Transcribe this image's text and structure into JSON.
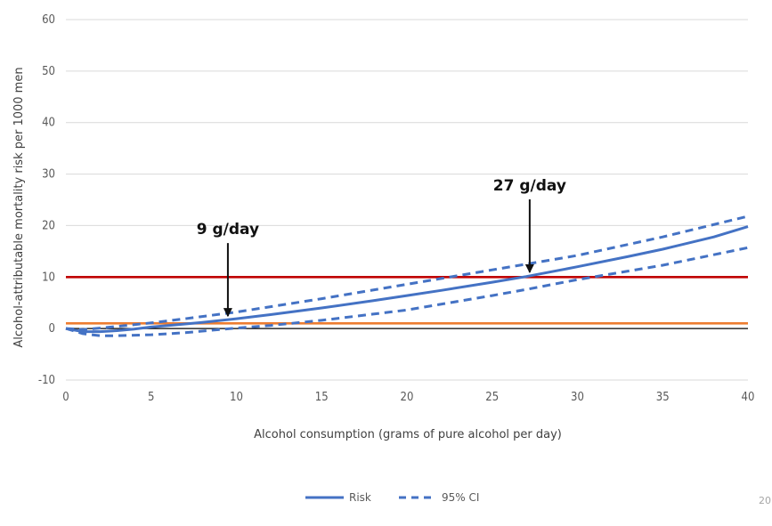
{
  "chart_data": {
    "type": "line",
    "xlabel": "Alcohol consumption (grams of pure alcohol per day)",
    "ylabel": "Alcohol-attributable mortality risk per 1000 men",
    "xlim": [
      0,
      40
    ],
    "ylim": [
      -10,
      60
    ],
    "x_ticks": [
      0,
      5,
      10,
      15,
      20,
      25,
      30,
      35,
      40
    ],
    "y_ticks": [
      -10,
      0,
      10,
      20,
      30,
      40,
      50,
      60
    ],
    "grid": "horizontal",
    "legend_position": "bottom",
    "series": [
      {
        "name": "Risk",
        "style": "solid",
        "color": "#4472c4",
        "x": [
          0,
          1,
          2,
          3,
          4,
          5,
          6,
          8,
          10,
          12,
          15,
          18,
          20,
          22,
          25,
          27,
          30,
          33,
          35,
          38,
          40
        ],
        "y": [
          0,
          -0.6,
          -0.6,
          -0.4,
          -0.1,
          0.3,
          0.6,
          1.2,
          1.9,
          2.7,
          4.0,
          5.4,
          6.4,
          7.4,
          9.0,
          10.1,
          12.0,
          14.0,
          15.4,
          17.8,
          19.8
        ]
      },
      {
        "name": "95% CI",
        "style": "dashed",
        "color": "#4472c4",
        "x": [
          0,
          1,
          2,
          3,
          5,
          7,
          10,
          15,
          20,
          25,
          27,
          30,
          35,
          40
        ],
        "y": [
          0,
          -0.2,
          0.1,
          0.4,
          1.1,
          1.9,
          3.2,
          5.8,
          8.6,
          11.4,
          12.5,
          14.2,
          17.8,
          21.8
        ]
      },
      {
        "name": "95% CI",
        "style": "dashed",
        "color": "#4472c4",
        "x": [
          0,
          1,
          2,
          3,
          5,
          7,
          8,
          10,
          12,
          15,
          20,
          25,
          27,
          30,
          35,
          40
        ],
        "y": [
          0,
          -1.0,
          -1.4,
          -1.4,
          -1.2,
          -0.8,
          -0.5,
          0.1,
          0.6,
          1.6,
          3.6,
          6.4,
          7.6,
          9.5,
          12.3,
          15.7
        ]
      }
    ],
    "reference_lines": [
      {
        "y": 10,
        "color": "#c00000"
      },
      {
        "y": 1,
        "color": "#ed7d31"
      },
      {
        "y": 0,
        "color": "#000000"
      }
    ],
    "annotations": [
      {
        "text": "9 g/day",
        "x": 9.5
      },
      {
        "text": "27 g/day",
        "x": 27.2
      }
    ],
    "legend": [
      {
        "label": "Risk",
        "style": "solid"
      },
      {
        "label": "95% CI",
        "style": "dashed"
      }
    ]
  },
  "page_number": "20"
}
